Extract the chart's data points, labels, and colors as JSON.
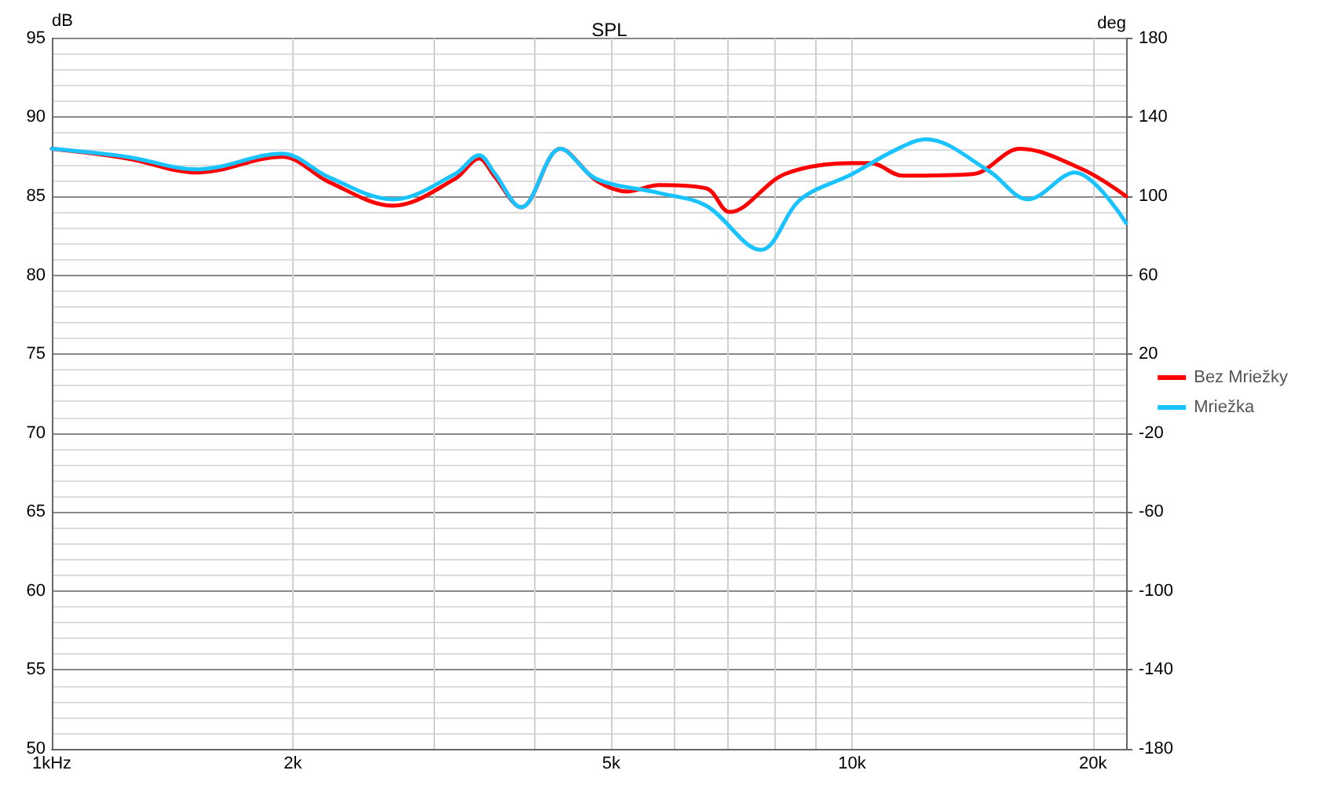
{
  "chart_data": {
    "type": "line",
    "title": "SPL",
    "ylabel": "dB",
    "y2label": "deg",
    "log": "x",
    "grid": true,
    "legend": "right",
    "marker": "none",
    "line_style": "solid",
    "xlim": [
      1,
      22
    ],
    "xticks": [
      {
        "value": 1,
        "label": "1kHz"
      },
      {
        "value": 2,
        "label": "2k"
      },
      {
        "value": 3,
        "label": null
      },
      {
        "value": 4,
        "label": null
      },
      {
        "value": 5,
        "label": "5k"
      },
      {
        "value": 6,
        "label": null
      },
      {
        "value": 7,
        "label": null
      },
      {
        "value": 8,
        "label": null
      },
      {
        "value": 9,
        "label": null
      },
      {
        "value": 10,
        "label": "10k"
      },
      {
        "value": 20,
        "label": "20k"
      }
    ],
    "ylim": [
      50,
      95
    ],
    "yticks": [
      50,
      55,
      60,
      65,
      70,
      75,
      80,
      85,
      90,
      95
    ],
    "y2lim": [
      -180,
      180
    ],
    "y2ticks": [
      -180,
      -140,
      -100,
      -60,
      -20,
      20,
      60,
      100,
      140,
      180
    ],
    "series": [
      {
        "name": "Bez Mriežky",
        "color": "#ff0000",
        "x": [
          1,
          1.24,
          1.52,
          1.94,
          2.22,
          2.67,
          3.19,
          3.42,
          3.57,
          3.86,
          4.32,
          4.79,
          5.24,
          5.74,
          6.57,
          7.03,
          8.24,
          10,
          10.56,
          11.56,
          14.16,
          16.21,
          19.41,
          22
        ],
        "values": [
          88.0,
          87.4,
          86.5,
          87.5,
          85.9,
          84.4,
          86.1,
          87.4,
          86.3,
          84.3,
          88.0,
          86.0,
          85.3,
          85.7,
          85.5,
          84.0,
          86.4,
          87.1,
          87.1,
          86.3,
          86.4,
          88.0,
          86.7,
          85.0
        ]
      },
      {
        "name": "Mriežka",
        "color": "#19c3ff",
        "x": [
          1,
          1.24,
          1.52,
          1.94,
          2.22,
          2.67,
          3.19,
          3.42,
          3.57,
          3.86,
          4.32,
          4.79,
          5.74,
          6.57,
          7.69,
          8.62,
          10,
          11.3,
          12.37,
          14.82,
          16.59,
          18.97,
          22
        ],
        "values": [
          88.0,
          87.5,
          86.7,
          87.7,
          86.2,
          84.8,
          86.4,
          87.6,
          86.5,
          84.3,
          88.0,
          86.1,
          85.2,
          84.4,
          81.6,
          84.8,
          86.4,
          87.9,
          88.6,
          86.6,
          84.8,
          86.5,
          83.3
        ]
      }
    ]
  }
}
